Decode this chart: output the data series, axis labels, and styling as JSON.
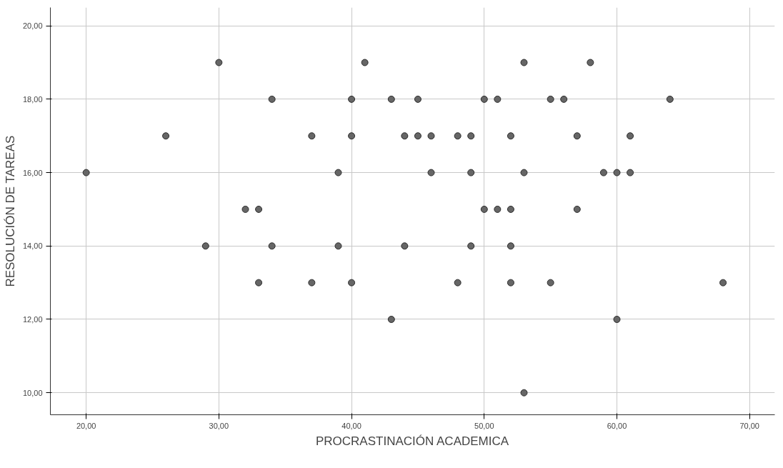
{
  "chart_data": {
    "type": "scatter",
    "xlabel": "PROCRASTINACIÓN ACADEMICA",
    "ylabel": "RESOLUCIÓN DE TAREAS",
    "xlim": [
      17.3,
      71.9
    ],
    "ylim": [
      9.4,
      20.5
    ],
    "xticks": [
      {
        "value": 20,
        "label": "20,00"
      },
      {
        "value": 30,
        "label": "30,00"
      },
      {
        "value": 40,
        "label": "40,00"
      },
      {
        "value": 50,
        "label": "50,00"
      },
      {
        "value": 60,
        "label": "60,00"
      },
      {
        "value": 70,
        "label": "70,00"
      }
    ],
    "yticks": [
      {
        "value": 10,
        "label": "10,00"
      },
      {
        "value": 12,
        "label": "12,00"
      },
      {
        "value": 14,
        "label": "14,00"
      },
      {
        "value": 16,
        "label": "16,00"
      },
      {
        "value": 18,
        "label": "18,00"
      },
      {
        "value": 20,
        "label": "20,00"
      }
    ],
    "grid": true,
    "marker": "circle",
    "series": [
      {
        "color": "#666666",
        "x": [
          20,
          26,
          30,
          34,
          37,
          29,
          32,
          33,
          34,
          33,
          37,
          39,
          39,
          40,
          40,
          40,
          41,
          43,
          43,
          44,
          44,
          45,
          45,
          46,
          46,
          48,
          48,
          49,
          49,
          49,
          50,
          50,
          51,
          51,
          52,
          52,
          52,
          52,
          53,
          53,
          53,
          55,
          55,
          56,
          57,
          57,
          58,
          59,
          60,
          60,
          61,
          61,
          64,
          68
        ],
        "values": [
          16,
          17,
          19,
          18,
          17,
          14,
          15,
          15,
          14,
          13,
          13,
          16,
          14,
          18,
          17,
          13,
          19,
          18,
          12,
          17,
          14,
          18,
          17,
          17,
          16,
          17,
          13,
          17,
          16,
          14,
          18,
          15,
          18,
          15,
          17,
          15,
          14,
          13,
          19,
          16,
          10,
          18,
          13,
          18,
          17,
          15,
          19,
          16,
          16,
          12,
          17,
          16,
          18,
          13
        ]
      }
    ]
  }
}
